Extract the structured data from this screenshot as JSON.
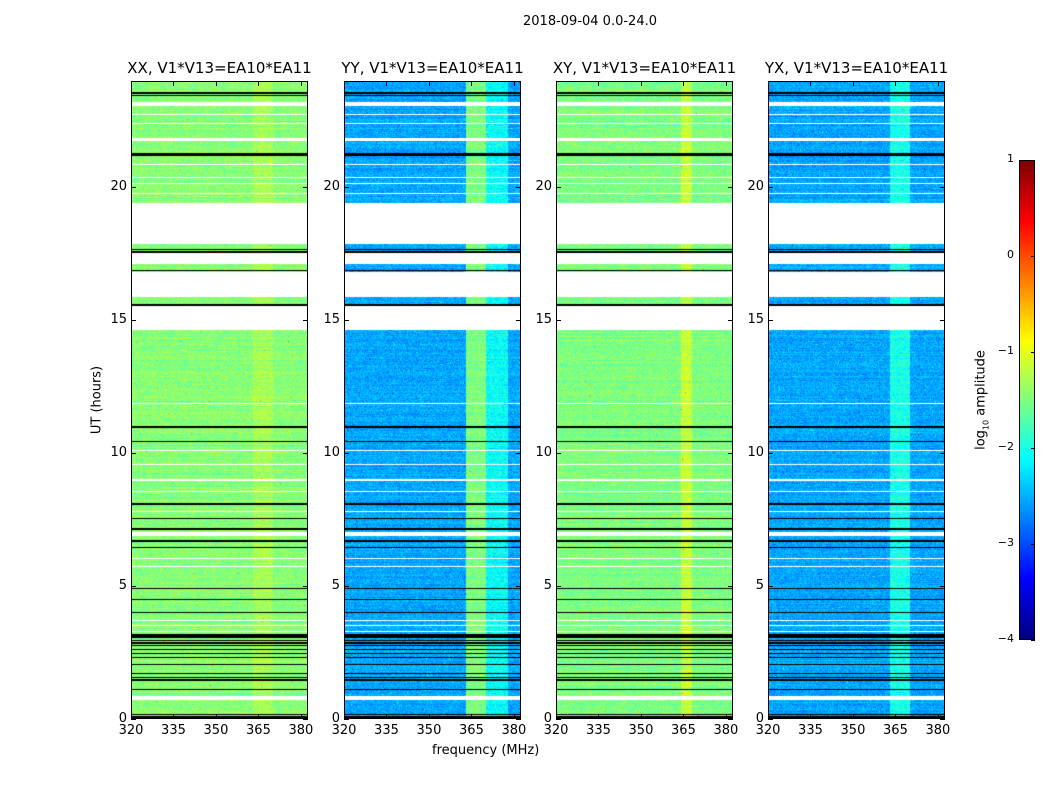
{
  "chart_data": {
    "type": "heatmap",
    "title": "2018-09-04 0.0-24.0",
    "xlabel": "frequency (MHz)",
    "ylabel": "UT (hours)",
    "xlim": [
      320,
      382.5
    ],
    "ylim": [
      0,
      24
    ],
    "xticks": [
      "320",
      "335",
      "350",
      "365",
      "380"
    ],
    "xtick_values": [
      320,
      335,
      350,
      365,
      380
    ],
    "yticks": [
      "0",
      "5",
      "10",
      "15",
      "20"
    ],
    "ytick_values": [
      0,
      5,
      10,
      15,
      20
    ],
    "colorbar": {
      "label": "log10 amplitude",
      "label_main": "log",
      "label_sub": "10",
      "label_rest": " amplitude",
      "range": [
        -4,
        1
      ],
      "ticks": [
        "1",
        "0",
        "−1",
        "−2",
        "−3",
        "−4"
      ],
      "tick_values": [
        1,
        0,
        -1,
        -2,
        -3,
        -4
      ],
      "colormap": "jet"
    },
    "panels": [
      {
        "title": "XX, V1*V13=EA10*EA11",
        "base_level": -1.45,
        "rfi_band": [
          363,
          370
        ],
        "rfi_level": -1.3
      },
      {
        "title": "YY, V1*V13=EA10*EA11",
        "base_level": -2.55,
        "rfi_band": [
          363,
          370
        ],
        "rfi_level": -1.5,
        "rfi_band2": [
          370,
          378
        ],
        "rfi_level2": -2.1
      },
      {
        "title": "XY, V1*V13=EA10*EA11",
        "base_level": -1.5,
        "rfi_band": [
          364,
          368
        ],
        "rfi_level": -1.15
      },
      {
        "title": "YX, V1*V13=EA10*EA11",
        "base_level": -2.55,
        "rfi_band": [
          363,
          370
        ],
        "rfi_level": -2.0
      }
    ],
    "flagged_intervals_hours": [
      [
        17.9,
        19.45
      ],
      [
        17.15,
        17.55
      ],
      [
        15.9,
        16.85
      ],
      [
        14.65,
        15.55
      ],
      [
        23.1,
        23.25
      ],
      [
        22.78,
        22.82
      ],
      [
        22.43,
        22.47
      ],
      [
        21.8,
        21.9
      ],
      [
        20.88,
        20.92
      ],
      [
        20.38,
        20.42
      ],
      [
        20.18,
        20.22
      ],
      [
        19.78,
        19.82
      ],
      [
        11.88,
        11.92
      ],
      [
        10.08,
        10.12
      ],
      [
        9.58,
        9.62
      ],
      [
        8.98,
        9.02
      ],
      [
        8.53,
        8.57
      ],
      [
        7.78,
        7.82
      ],
      [
        6.88,
        7.02
      ],
      [
        6.03,
        6.07
      ],
      [
        5.73,
        5.77
      ],
      [
        3.68,
        3.72
      ],
      [
        3.48,
        3.52
      ],
      [
        3.28,
        3.32
      ],
      [
        0.7,
        0.86
      ]
    ],
    "dead_rows_hours": [
      23.6,
      23.5,
      21.3,
      21.25,
      17.7,
      17.6,
      16.9,
      15.6,
      11.0,
      10.45,
      8.1,
      7.55,
      7.15,
      6.7,
      6.45,
      4.9,
      4.5,
      4.0,
      3.15,
      3.1,
      3.05,
      2.95,
      2.85,
      2.75,
      2.6,
      2.45,
      2.3,
      2.05,
      1.7,
      1.55,
      1.45,
      1.1,
      0.15,
      0.08,
      0.02
    ]
  }
}
